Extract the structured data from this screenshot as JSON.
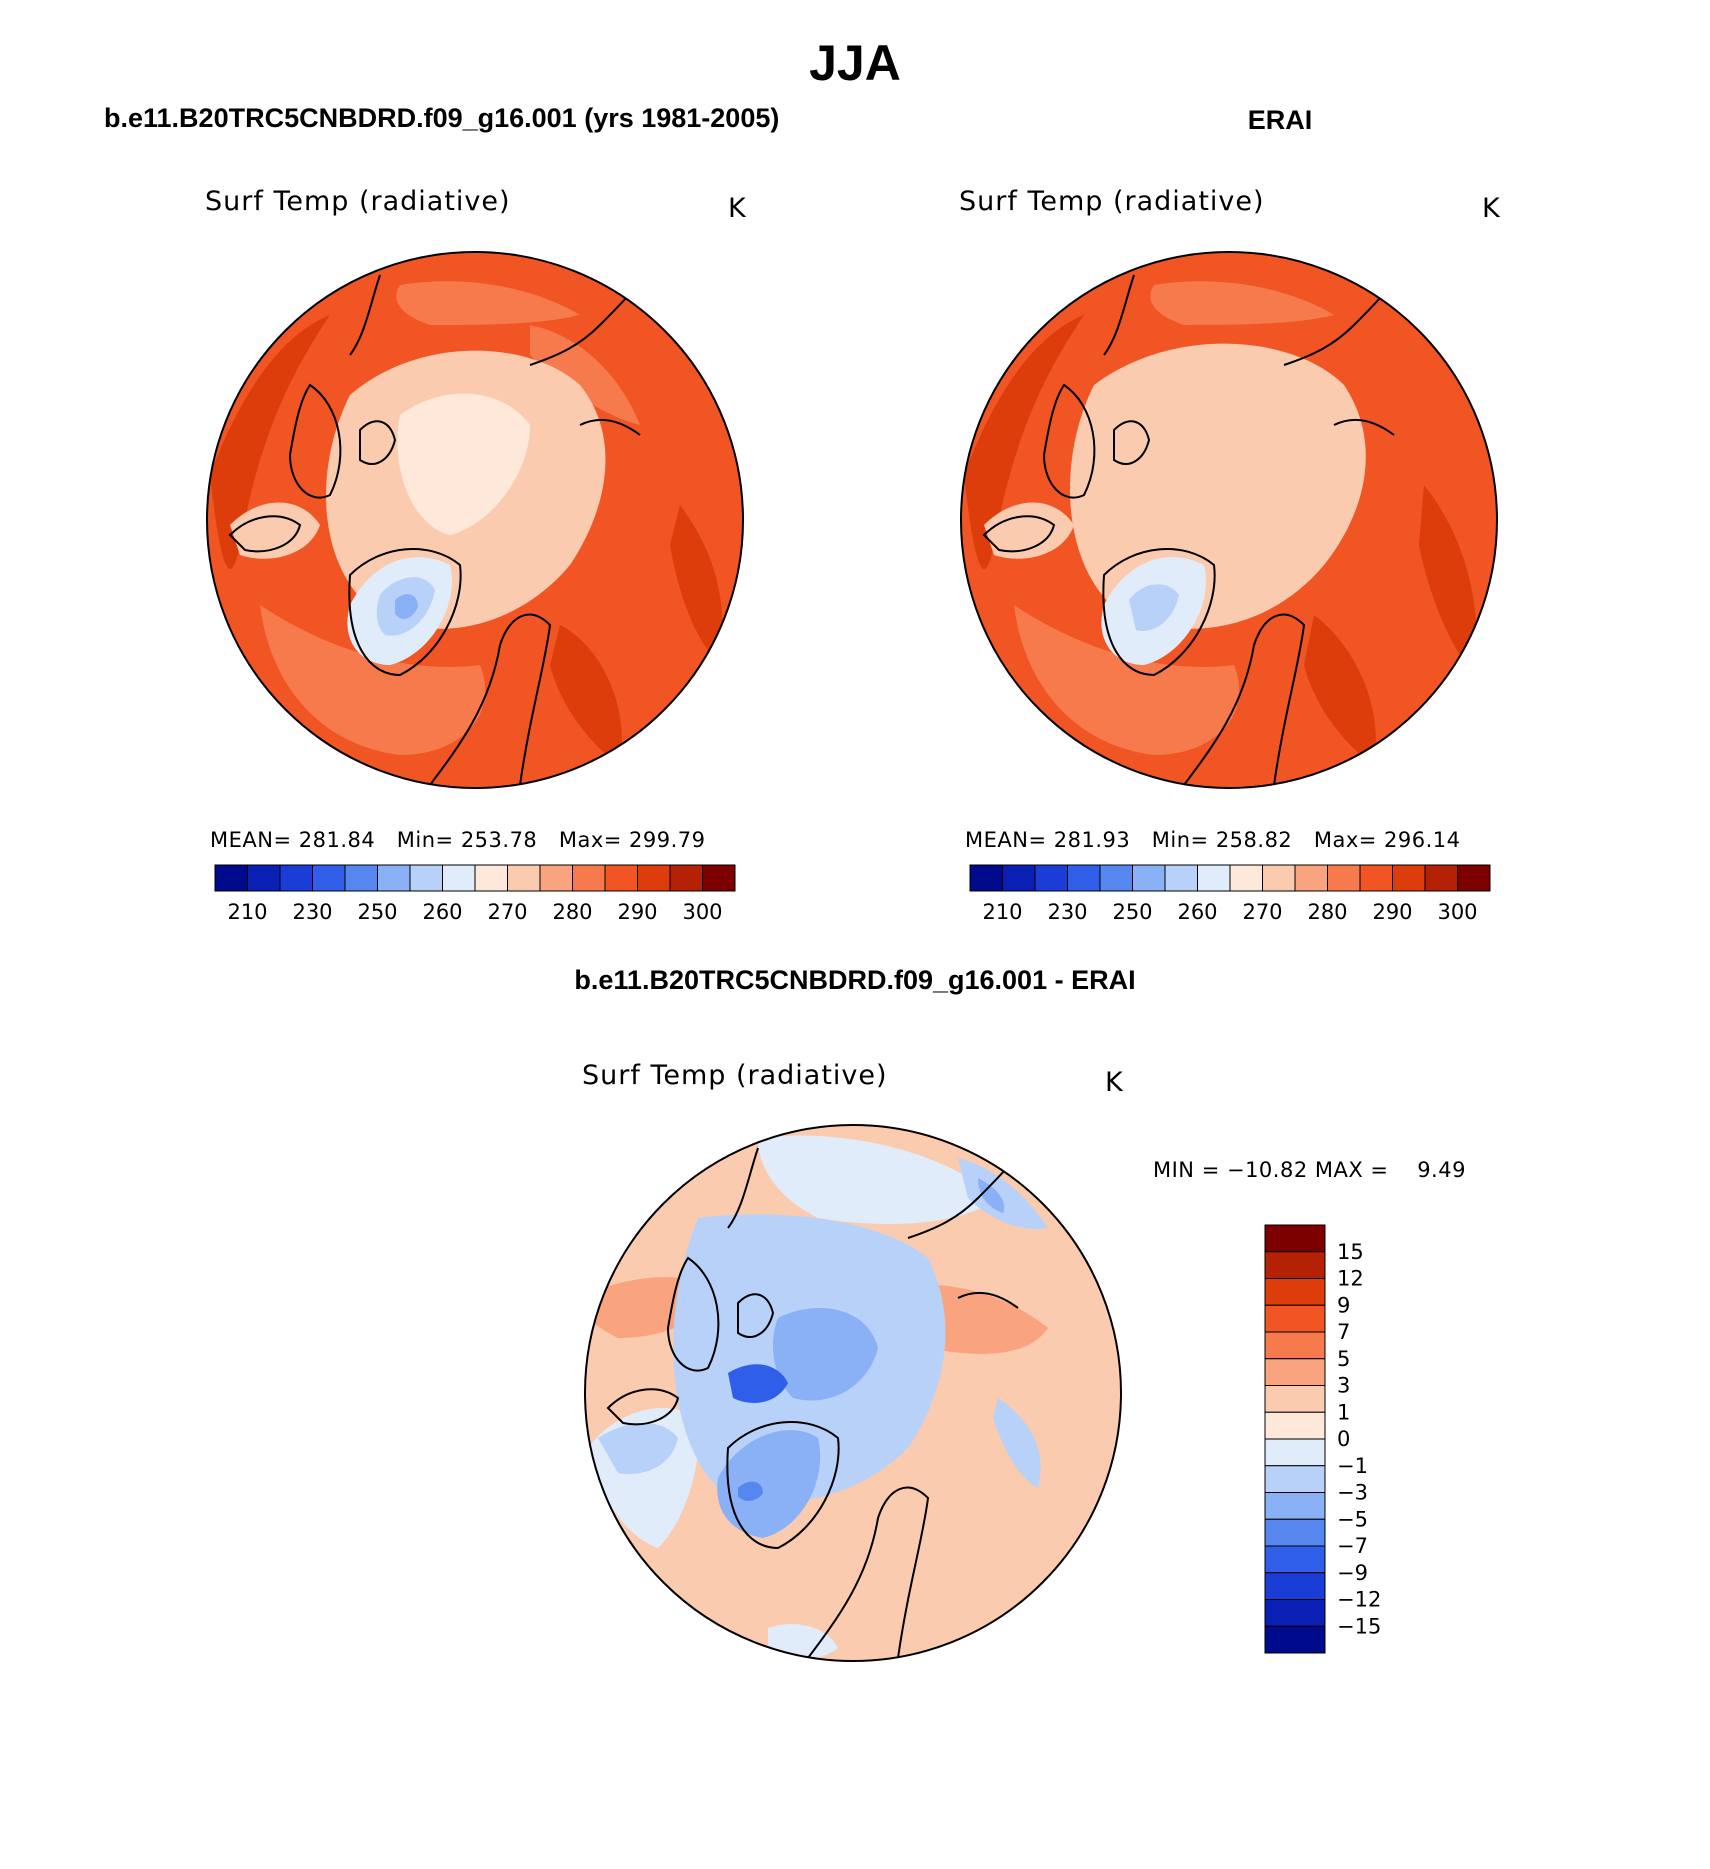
{
  "page_title": "JJA",
  "panels": [
    {
      "case": "b.e11.B20TRC5CNBDRD.f09_g16.001 (yrs 1981-2005)",
      "variable": "Surf Temp (radiative)",
      "units": "K",
      "stats": {
        "mean_label": "MEAN=",
        "mean": "281.84",
        "min_label": "Min=",
        "min": "253.78",
        "max_label": "Max=",
        "max": "299.79"
      }
    },
    {
      "case": "ERAI",
      "variable": "Surf Temp (radiative)",
      "units": "K",
      "stats": {
        "mean_label": "MEAN=",
        "mean": "281.93",
        "min_label": "Min=",
        "min": "258.82",
        "max_label": "Max=",
        "max": "296.14"
      }
    }
  ],
  "difference": {
    "title": "b.e11.B20TRC5CNBDRD.f09_g16.001 - ERAI",
    "variable": "Surf Temp (radiative)",
    "units": "K",
    "minmax_text": "MIN = −10.82 MAX =    9.49"
  },
  "abs_colorbar": {
    "colors": [
      "#000a8c",
      "#0a1fb4",
      "#1a3dd8",
      "#2f5fe8",
      "#5687ef",
      "#8ab0f5",
      "#b8d1f9",
      "#e1ecfb",
      "#fde8d9",
      "#fbcbb0",
      "#f9a47e",
      "#f77a4c",
      "#f05523",
      "#dc3d0b",
      "#b52105",
      "#7d0000"
    ],
    "labels": [
      "210",
      "230",
      "250",
      "260",
      "270",
      "280",
      "290",
      "300"
    ]
  },
  "diff_colorbar": {
    "colors_top_to_bottom": [
      "#7d0000",
      "#b52105",
      "#dc3d0b",
      "#f05523",
      "#f77a4c",
      "#f9a47e",
      "#fbcbb0",
      "#fde8d9",
      "#e1ecfb",
      "#b8d1f9",
      "#8ab0f5",
      "#5687ef",
      "#2f5fe8",
      "#1a3dd8",
      "#0a1fb4",
      "#000a8c"
    ],
    "labels_top_to_bottom": [
      "15",
      "12",
      "9",
      "7",
      "5",
      "3",
      "1",
      "0",
      "−1",
      "−3",
      "−5",
      "−7",
      "−9",
      "−12",
      "−15"
    ]
  }
}
